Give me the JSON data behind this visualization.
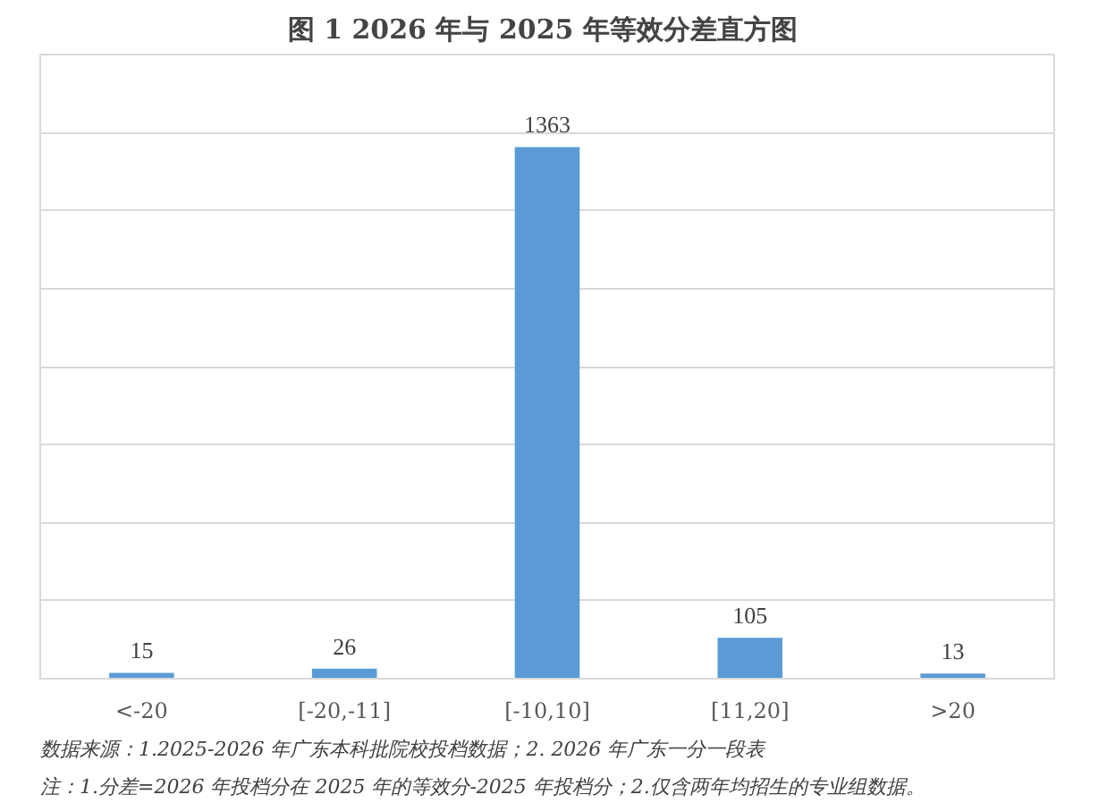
{
  "chart_data": {
    "type": "bar",
    "title": "图 1  2026 年与 2025 年等效分差直方图",
    "categories": [
      "<-20",
      "[-20,-11]",
      "[-10,10]",
      "[11,20]",
      ">20"
    ],
    "values": [
      15,
      26,
      1363,
      105,
      13
    ],
    "color": "#5b9bd5",
    "ylim": [
      0,
      1600
    ],
    "yticks": [
      {
        "value": 0,
        "label": null
      },
      {
        "value": 200,
        "label": null
      },
      {
        "value": 400,
        "label": null
      },
      {
        "value": 600,
        "label": null
      },
      {
        "value": 800,
        "label": null
      },
      {
        "value": 1000,
        "label": null
      },
      {
        "value": 1200,
        "label": null
      },
      {
        "value": 1400,
        "label": null
      },
      {
        "value": 1600,
        "label": null
      }
    ],
    "grid": "y",
    "tick_labels": "x",
    "data_labels": true,
    "annotations": [
      "数据来源：1.2025-2026 年广东本科批院校投档数据；2. 2026 年广东一分一段表",
      "注：1.分差=2026 年投档分在 2025 年的等效分-2025 年投档分；2.仅含两年均招生的专业组数据。"
    ]
  }
}
